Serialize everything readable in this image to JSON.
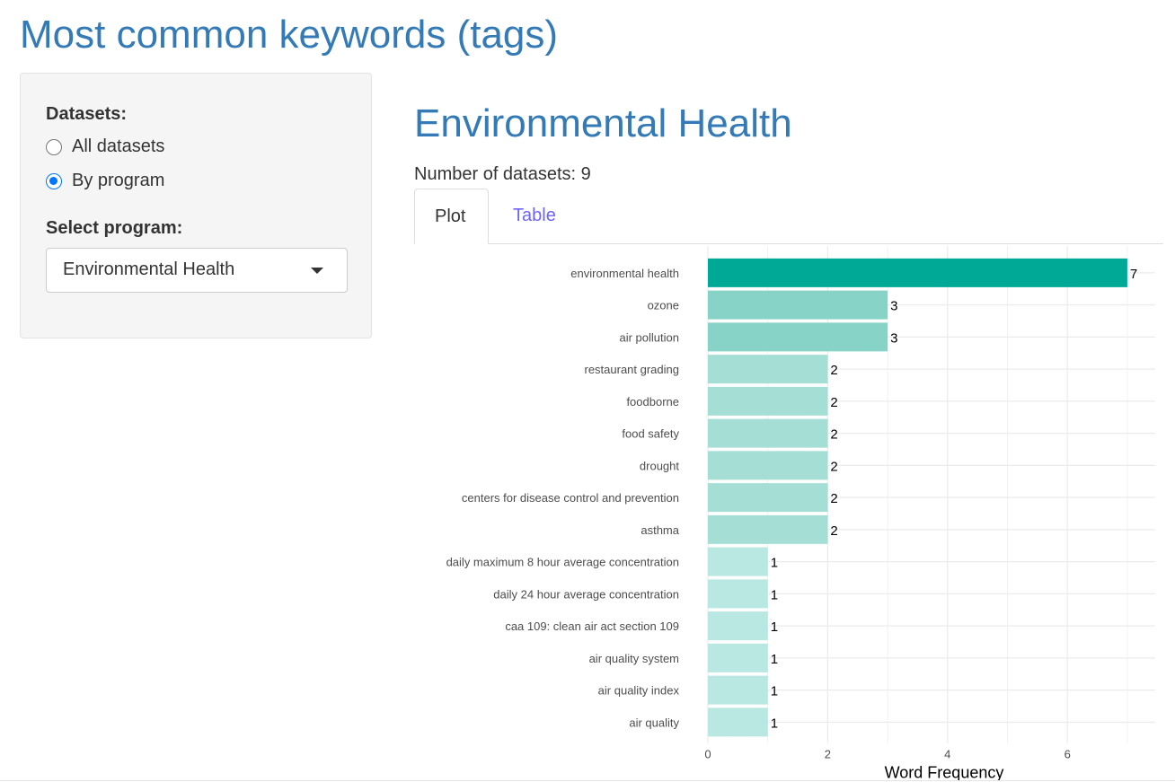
{
  "page": {
    "title": "Most common keywords (tags)"
  },
  "sidebar": {
    "datasets_label": "Datasets:",
    "radio_options": [
      {
        "label": "All datasets",
        "checked": false
      },
      {
        "label": "By program",
        "checked": true
      }
    ],
    "select_label": "Select program:",
    "select_value": "Environmental Health"
  },
  "main": {
    "program_title": "Environmental Health",
    "dataset_count": "Number of datasets: 9",
    "tabs": [
      {
        "label": "Plot",
        "active": true
      },
      {
        "label": "Table",
        "active": false
      }
    ]
  },
  "chart_data": {
    "type": "bar",
    "orientation": "horizontal",
    "categories": [
      "environmental health",
      "ozone",
      "air pollution",
      "restaurant grading",
      "foodborne",
      "food safety",
      "drought",
      "centers for disease control and prevention",
      "asthma",
      "daily maximum 8 hour average concentration",
      "daily 24 hour average concentration",
      "caa 109: clean air act section 109",
      "air quality system",
      "air quality index",
      "air quality"
    ],
    "values": [
      7,
      3,
      3,
      2,
      2,
      2,
      2,
      2,
      2,
      1,
      1,
      1,
      1,
      1,
      1
    ],
    "xlabel": "Word Frequency",
    "ylabel": "",
    "xlim": [
      0,
      7.45
    ],
    "xticks": [
      0,
      2,
      4,
      6
    ],
    "grid": true,
    "data_labels": true,
    "colors": {
      "7": "#00a896",
      "3": "#88d3c7",
      "2": "#a4ded5",
      "1": "#b9e7e1"
    },
    "grid_color": "#ebebeb"
  }
}
